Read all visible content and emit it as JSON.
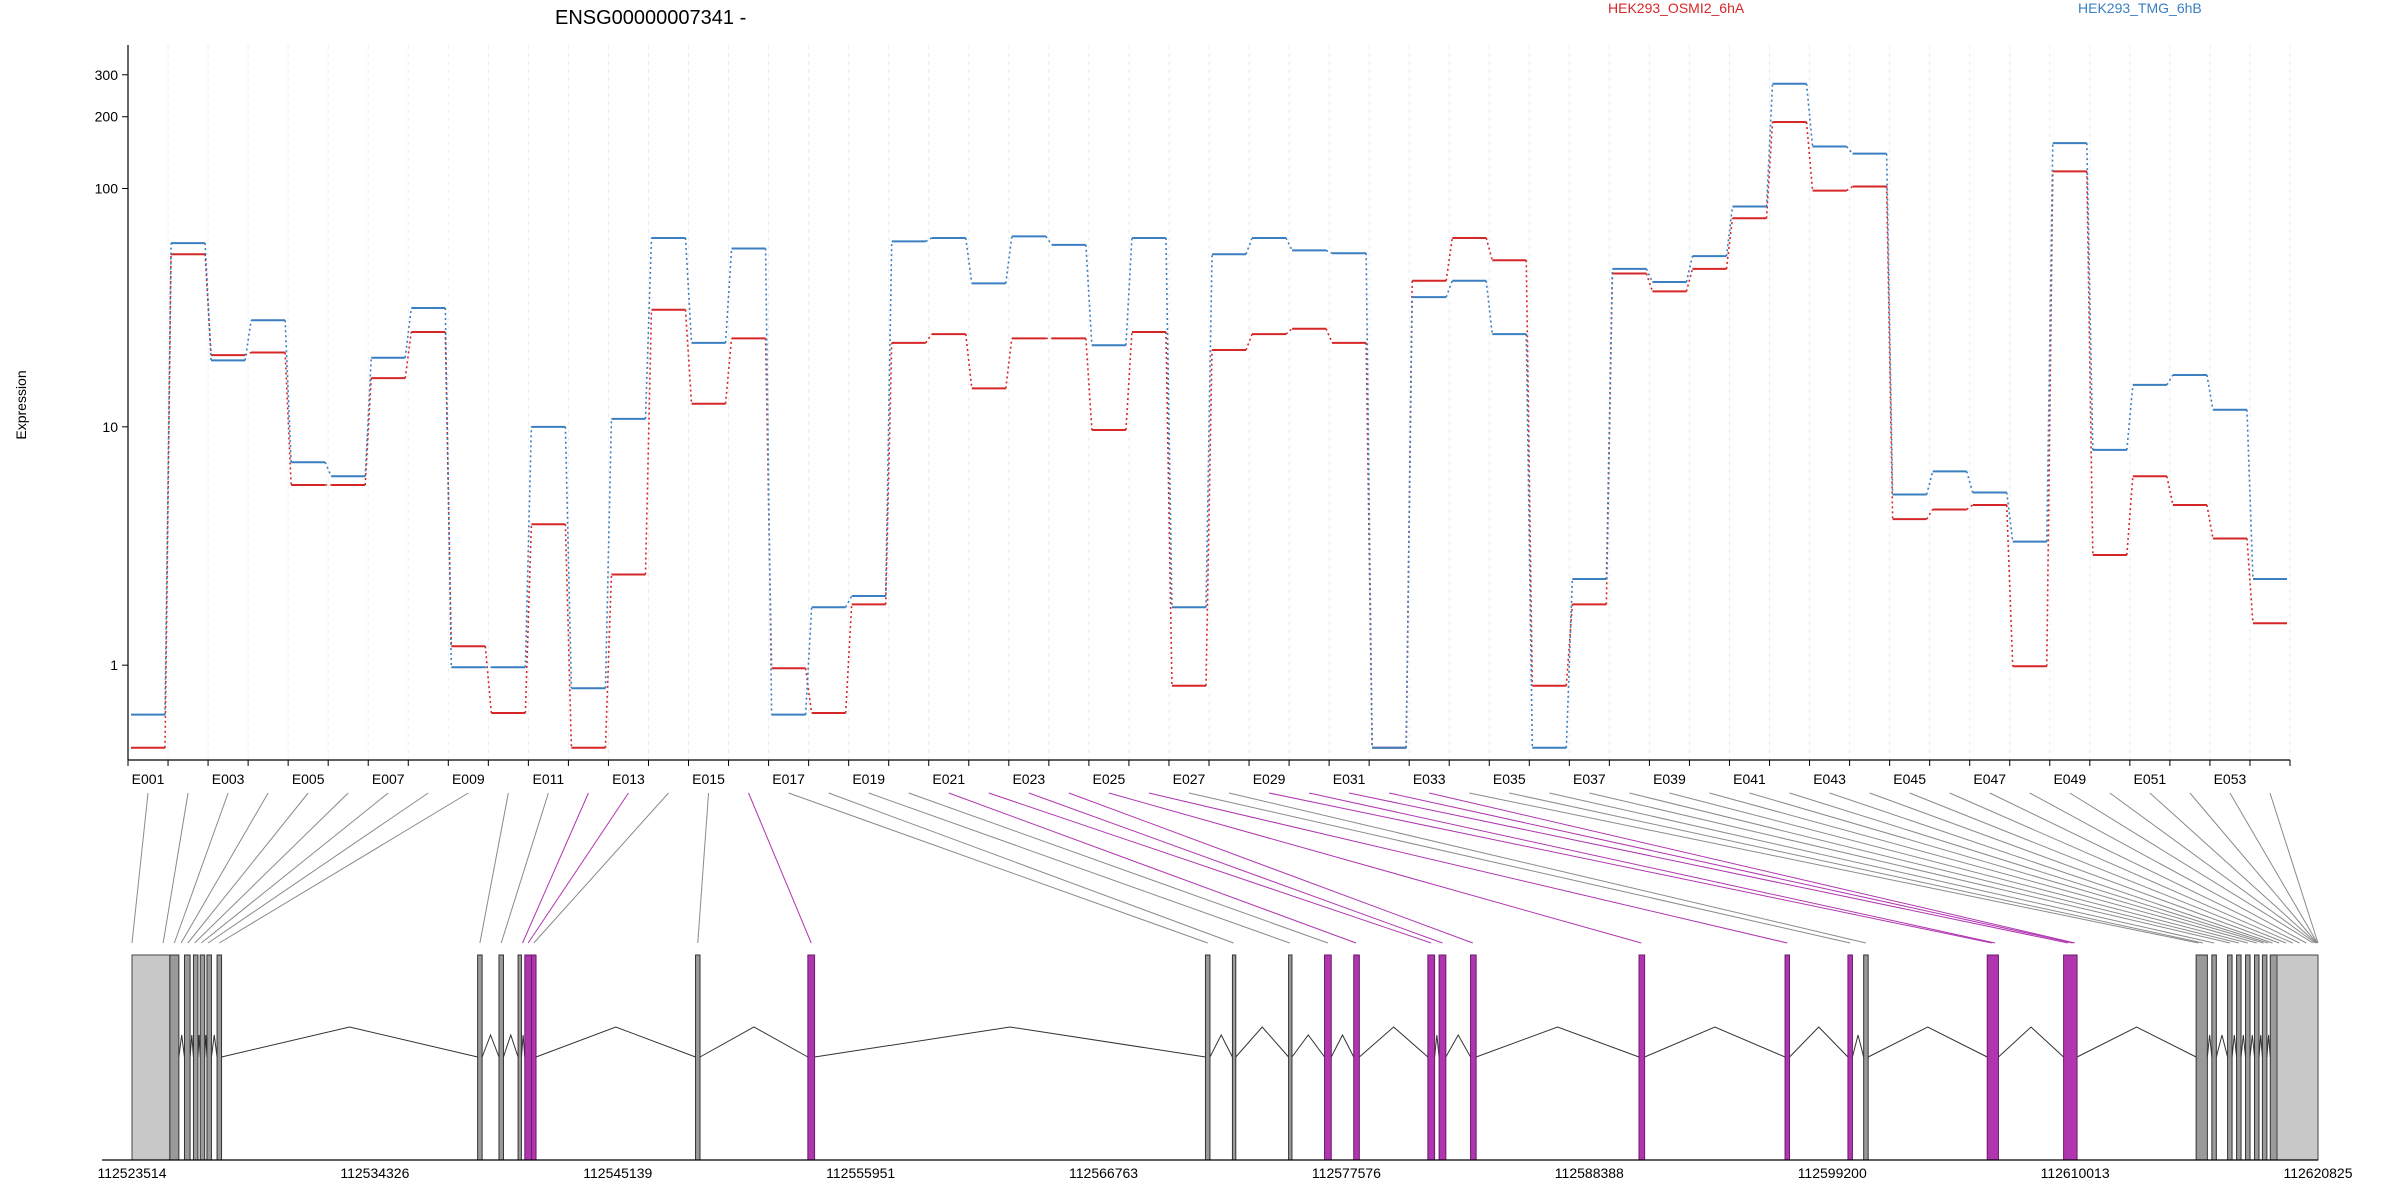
{
  "header": {
    "gene_title": "ENSG00000007341 -",
    "legend": [
      {
        "name": "HEK293_OSMI2_6hA",
        "color": "#d62728"
      },
      {
        "name": "HEK293_TMG_6hB",
        "color": "#3a7fc1"
      }
    ]
  },
  "chart_data": {
    "type": "line",
    "ylabel": "Expression",
    "yscale": "log",
    "ylim": [
      0.4,
      400
    ],
    "y_ticks": [
      1,
      10,
      100,
      200,
      300
    ],
    "y_tick_labels": [
      "1",
      "10",
      "100",
      "200",
      "300"
    ],
    "categories": [
      "E001",
      "E002",
      "E003",
      "E004",
      "E005",
      "E006",
      "E007",
      "E008",
      "E009",
      "E010",
      "E011",
      "E012",
      "E013",
      "E014",
      "E015",
      "E016",
      "E017",
      "E018",
      "E019",
      "E020",
      "E021",
      "E022",
      "E023",
      "E024",
      "E025",
      "E026",
      "E027",
      "E028",
      "E029",
      "E030",
      "E031",
      "E032",
      "E033",
      "E034",
      "E035",
      "E036",
      "E037",
      "E038",
      "E039",
      "E040",
      "E041",
      "E042",
      "E043",
      "E044",
      "E045",
      "E046",
      "E047",
      "E048",
      "E049",
      "E050",
      "E051",
      "E052",
      "E053",
      "E054"
    ],
    "tick_labels_shown": [
      "E001",
      "E003",
      "E005",
      "E007",
      "E009",
      "E011",
      "E013",
      "E015",
      "E017",
      "E019",
      "E021",
      "E023",
      "E025",
      "E027",
      "E029",
      "E031",
      "E033",
      "E035",
      "E037",
      "E039",
      "E041",
      "E043",
      "E045",
      "E047",
      "E049",
      "E051",
      "E053"
    ],
    "series": [
      {
        "name": "HEK293_OSMI2_6hA",
        "color": "#d62728",
        "values": [
          0.45,
          53,
          20,
          20.5,
          5.7,
          5.7,
          16,
          25,
          1.2,
          0.63,
          3.9,
          0.45,
          2.4,
          31,
          12.5,
          23.5,
          0.97,
          0.63,
          1.8,
          22.5,
          24.5,
          14.5,
          23.5,
          23.5,
          9.7,
          25,
          0.82,
          21,
          24.5,
          25.8,
          22.5,
          0.45,
          41,
          62,
          50,
          0.82,
          1.8,
          44,
          37,
          46,
          75,
          190,
          98,
          102,
          4.1,
          4.5,
          4.7,
          0.99,
          118,
          2.9,
          6.2,
          4.7,
          3.4,
          1.5
        ]
      },
      {
        "name": "HEK293_TMG_6hB",
        "color": "#3a7fc1",
        "values": [
          0.62,
          59,
          19,
          28,
          7.1,
          6.2,
          19.5,
          31.5,
          0.98,
          0.98,
          10,
          0.8,
          10.8,
          62,
          22.5,
          56,
          0.62,
          1.75,
          1.95,
          60,
          62,
          40,
          63,
          58,
          22,
          62,
          1.75,
          53,
          62,
          55,
          53.5,
          0.45,
          35,
          41,
          24.5,
          0.45,
          2.3,
          46,
          40.5,
          52,
          84,
          275,
          150,
          140,
          5.2,
          6.5,
          5.3,
          3.3,
          155,
          8,
          15,
          16.5,
          11.8,
          2.3
        ]
      }
    ],
    "gene_model": {
      "coordinate_labels": [
        "112523514",
        "112534326",
        "112545139",
        "112555951",
        "112566763",
        "112577576",
        "112588388",
        "112599200",
        "112610013",
        "112620825"
      ],
      "xlim": [
        112523514,
        112620825
      ],
      "highlight_color": "#b036b0",
      "exons": [
        {
          "start": 112523514,
          "end": 112525200,
          "type": "utr"
        },
        {
          "start": 112525200,
          "end": 112525600
        },
        {
          "start": 112525850,
          "end": 112526100
        },
        {
          "start": 112526250,
          "end": 112526450
        },
        {
          "start": 112526550,
          "end": 112526750
        },
        {
          "start": 112526850,
          "end": 112527050
        },
        {
          "start": 112527300,
          "end": 112527500
        },
        {
          "start": 112538900,
          "end": 112539100
        },
        {
          "start": 112539850,
          "end": 112540050
        },
        {
          "start": 112540700,
          "end": 112540850
        },
        {
          "start": 112541000,
          "end": 112541300,
          "hl": true
        },
        {
          "start": 112541300,
          "end": 112541500,
          "hl": true
        },
        {
          "start": 112548600,
          "end": 112548800
        },
        {
          "start": 112553600,
          "end": 112553900,
          "hl": true
        },
        {
          "start": 112571300,
          "end": 112571500
        },
        {
          "start": 112572500,
          "end": 112572650
        },
        {
          "start": 112575000,
          "end": 112575150
        },
        {
          "start": 112576600,
          "end": 112576900,
          "hl": true
        },
        {
          "start": 112577900,
          "end": 112578150,
          "hl": true
        },
        {
          "start": 112581200,
          "end": 112581500,
          "hl": true
        },
        {
          "start": 112581700,
          "end": 112582000,
          "hl": true
        },
        {
          "start": 112583100,
          "end": 112583350,
          "hl": true
        },
        {
          "start": 112590600,
          "end": 112590850,
          "hl": true
        },
        {
          "start": 112597100,
          "end": 112597300,
          "hl": true
        },
        {
          "start": 112599900,
          "end": 112600100,
          "hl": true
        },
        {
          "start": 112600600,
          "end": 112600800
        },
        {
          "start": 112606100,
          "end": 112606600,
          "hl": true
        },
        {
          "start": 112609500,
          "end": 112610100,
          "hl": true
        },
        {
          "start": 112615400,
          "end": 112615900
        },
        {
          "start": 112616100,
          "end": 112616300
        },
        {
          "start": 112616800,
          "end": 112617000
        },
        {
          "start": 112617200,
          "end": 112617400
        },
        {
          "start": 112617600,
          "end": 112617800
        },
        {
          "start": 112618000,
          "end": 112618200
        },
        {
          "start": 112618350,
          "end": 112618550
        },
        {
          "start": 112618700,
          "end": 112619000
        },
        {
          "start": 112619000,
          "end": 112620825,
          "type": "utr"
        }
      ],
      "bin_targets": [
        112523514,
        112524900,
        112525400,
        112525700,
        112526000,
        112526300,
        112526600,
        112526900,
        112527400,
        112539000,
        112539950,
        112540900,
        112541150,
        112541400,
        112548700,
        112553750,
        112571400,
        112572550,
        112575050,
        112576750,
        112578000,
        112581350,
        112581850,
        112583200,
        112590700,
        112597200,
        112600000,
        112600700,
        112606300,
        112606450,
        112609700,
        112609900,
        112610000,
        112615500,
        112615700,
        112616200,
        112616900,
        112617300,
        112617700,
        112618100,
        112618400,
        112618600,
        112618800,
        112619100,
        112619400,
        112619700,
        112620000,
        112620300,
        112620600,
        112620700,
        112620750,
        112620780,
        112620800,
        112620825
      ],
      "bin_highlight": [
        false,
        false,
        false,
        false,
        false,
        false,
        false,
        false,
        false,
        false,
        false,
        true,
        true,
        false,
        false,
        true,
        false,
        false,
        false,
        false,
        true,
        true,
        true,
        true,
        true,
        true,
        false,
        false,
        true,
        true,
        true,
        true,
        true,
        false,
        false,
        false,
        false,
        false,
        false,
        false,
        false,
        false,
        false,
        false,
        false,
        false,
        false,
        false,
        false,
        false,
        false,
        false,
        false,
        false
      ]
    }
  }
}
